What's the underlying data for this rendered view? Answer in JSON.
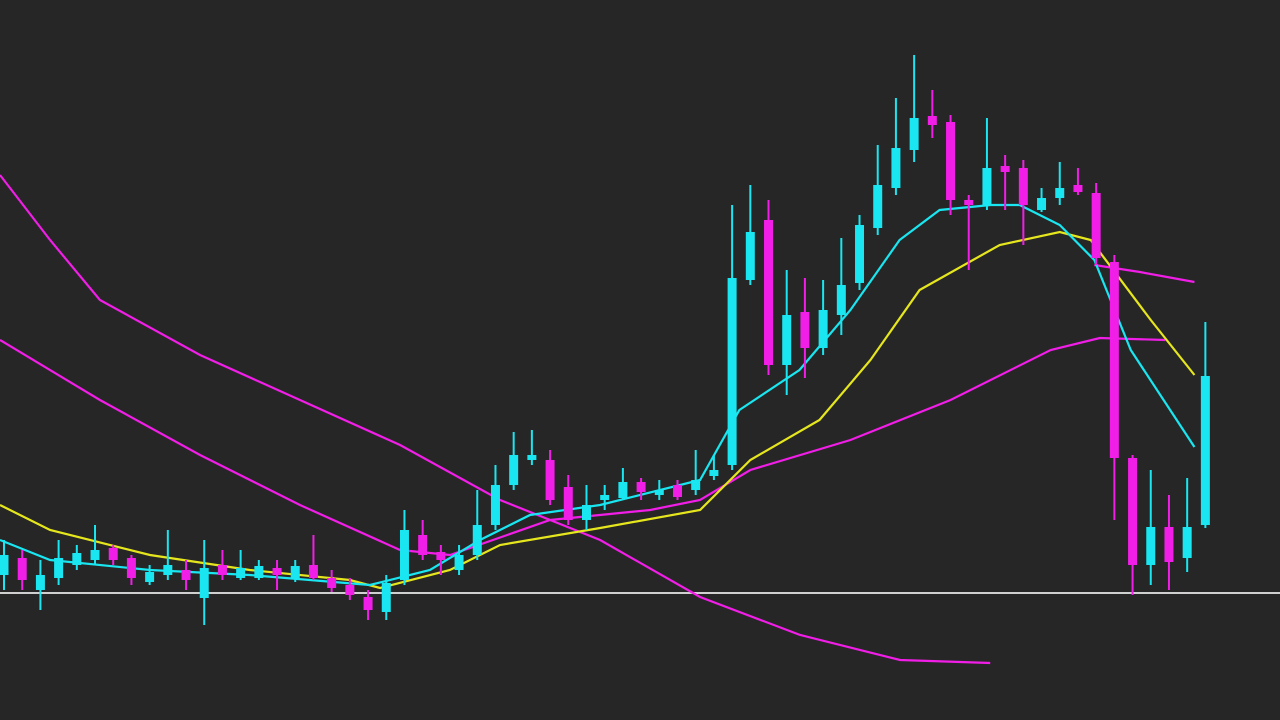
{
  "chart_data": {
    "type": "candlestick",
    "background": "#262626",
    "up_color": "#19e6f0",
    "down_color": "#f01ee6",
    "xlim": [
      -0.22,
      70.1
    ],
    "ylim": [
      0,
      720
    ],
    "open": [
      145,
      162,
      130,
      142,
      155,
      160,
      172,
      162,
      138,
      145,
      150,
      122,
      155,
      142,
      142,
      152,
      142,
      155,
      142,
      135,
      123,
      108,
      140,
      185,
      168,
      150,
      165,
      195,
      235,
      260,
      260,
      233,
      200,
      220,
      222,
      238,
      225,
      235,
      230,
      244,
      255,
      440,
      500,
      355,
      408,
      372,
      405,
      437,
      492,
      532,
      570,
      604,
      598,
      520,
      515,
      554,
      552,
      510,
      522,
      535,
      527,
      458,
      262,
      155,
      193,
      162,
      195
    ],
    "high": [
      180,
      170,
      160,
      180,
      175,
      195,
      175,
      165,
      155,
      190,
      160,
      180,
      170,
      170,
      160,
      160,
      160,
      185,
      150,
      142,
      130,
      145,
      210,
      200,
      175,
      175,
      230,
      255,
      288,
      290,
      270,
      245,
      235,
      235,
      252,
      242,
      240,
      240,
      270,
      265,
      515,
      535,
      520,
      450,
      442,
      440,
      482,
      505,
      575,
      622,
      665,
      630,
      605,
      525,
      602,
      565,
      560,
      532,
      558,
      552,
      537,
      465,
      265,
      250,
      225,
      242,
      398
    ],
    "low": [
      130,
      130,
      110,
      135,
      150,
      155,
      155,
      135,
      135,
      140,
      130,
      95,
      140,
      140,
      140,
      130,
      138,
      140,
      128,
      120,
      100,
      100,
      135,
      160,
      145,
      145,
      160,
      190,
      230,
      255,
      215,
      195,
      190,
      210,
      220,
      220,
      220,
      220,
      225,
      240,
      250,
      435,
      345,
      325,
      342,
      365,
      385,
      430,
      485,
      525,
      558,
      582,
      505,
      450,
      510,
      510,
      475,
      508,
      515,
      525,
      455,
      200,
      125,
      135,
      130,
      148,
      192
    ],
    "close": [
      165,
      140,
      145,
      162,
      167,
      170,
      160,
      142,
      148,
      155,
      140,
      152,
      145,
      152,
      154,
      145,
      154,
      142,
      132,
      125,
      110,
      137,
      190,
      165,
      160,
      165,
      195,
      235,
      265,
      265,
      220,
      200,
      215,
      225,
      238,
      228,
      230,
      223,
      240,
      250,
      442,
      488,
      355,
      405,
      372,
      410,
      435,
      495,
      535,
      572,
      602,
      595,
      520,
      515,
      552,
      548,
      515,
      522,
      532,
      528,
      462,
      262,
      155,
      193,
      158,
      193,
      344
    ],
    "lines": [
      {
        "color": "#f01ee6",
        "x": [
          -0.22,
          2.53,
          5.27,
          10.77,
          16.26,
          21.76,
          27.25,
          32.75,
          38.24,
          43.74,
          49.23,
          54.18
        ],
        "values": [
          545,
          480,
          420,
          365,
          320,
          275,
          220,
          180,
          123,
          85,
          60,
          57
        ]
      },
      {
        "color": "#f01ee6",
        "x": [
          -0.22,
          5.27,
          10.77,
          16.26,
          21.76,
          24.5,
          30,
          35.5,
          38.24,
          41,
          46.5,
          52,
          57.5,
          60.2,
          63.8
        ],
        "values": [
          380,
          320,
          265,
          215,
          170,
          165,
          200,
          210,
          220,
          250,
          280,
          320,
          370,
          382,
          380
        ]
      },
      {
        "color": "#f01ee6",
        "x": [
          59.9,
          62.4,
          65.4
        ],
        "values": [
          455,
          448,
          438
        ]
      },
      {
        "color": "#e6e61e",
        "x": [
          -0.22,
          2.53,
          8.02,
          13.5,
          19,
          20.66,
          24.5,
          27.25,
          32.75,
          38.24,
          41,
          44.8,
          47.6,
          50.3,
          54.7,
          58,
          59.7,
          63,
          65.4
        ],
        "values": [
          215,
          190,
          165,
          150,
          140,
          132,
          150,
          175,
          192,
          210,
          260,
          300,
          360,
          430,
          475,
          488,
          480,
          400,
          345
        ]
      },
      {
        "color": "#19e6f0",
        "x": [
          -0.22,
          2.53,
          8.02,
          13.5,
          20.1,
          23.4,
          26.15,
          28.9,
          32.75,
          38.24,
          40.4,
          43.7,
          46.5,
          49.2,
          51.4,
          54.2,
          55.8,
          58,
          59.9,
          61.9,
          65.4
        ],
        "values": [
          180,
          160,
          150,
          145,
          135,
          150,
          180,
          205,
          215,
          240,
          310,
          350,
          410,
          480,
          510,
          515,
          515,
          495,
          460,
          370,
          273
        ]
      }
    ],
    "hline": {
      "value": 127,
      "color": "#d0d0d0"
    }
  }
}
